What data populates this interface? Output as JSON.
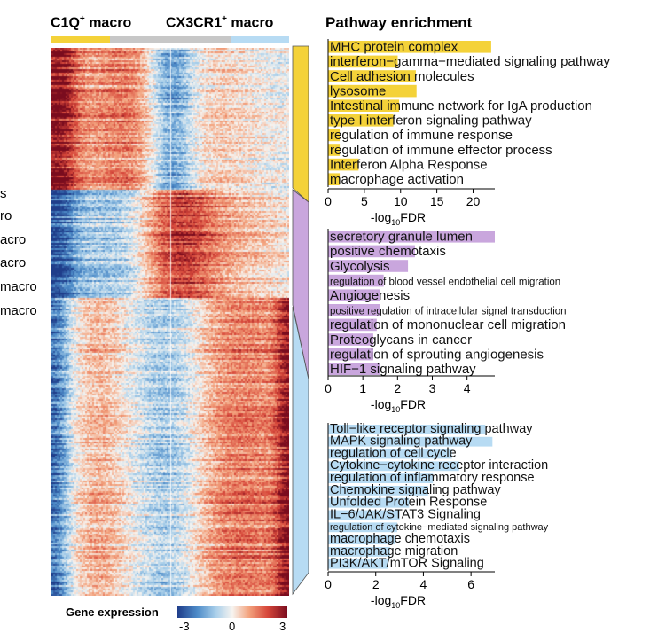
{
  "headers": {
    "c1q_prefix": "C1Q",
    "c1q_suffix": " macro",
    "cx3_prefix": "CX3CR1",
    "cx3_suffix": " macro",
    "sup": "+",
    "pathway": "Pathway enrichment"
  },
  "left_labels": [
    "s",
    "ro",
    "acro",
    "acro",
    "macro",
    "macro"
  ],
  "legend": {
    "title": "Gene expression",
    "ticks": [
      "-3",
      "0",
      "3"
    ]
  },
  "colors": {
    "yellow": "#f4d239",
    "purple": "#c9a6dd",
    "blue": "#b7dbf3",
    "gray": "#c7c7c7",
    "heat_low": "#2b5d9e",
    "heat_mid": "#f7f4f0",
    "heat_high": "#8b0f22"
  },
  "chart_data": [
    {
      "type": "bar",
      "orientation": "horizontal",
      "cluster": "yellow",
      "xlabel": "-log10FDR",
      "xlim": [
        0,
        23
      ],
      "xticks": [
        0,
        5,
        10,
        15,
        20
      ],
      "categories": [
        "MHC protein complex",
        "interferon−gamma−mediated signaling pathway",
        "Cell adhesion molecules",
        "lysosome",
        "Intestinal immune network for IgA production",
        "type I interferon signaling pathway",
        "regulation of immune response",
        "regulation of immune effector process",
        "Interferon Alpha Response",
        "macrophage activation"
      ],
      "values": [
        22.5,
        9.6,
        12.1,
        12.2,
        9.8,
        9.0,
        1.6,
        1.6,
        4.2,
        1.6
      ]
    },
    {
      "type": "bar",
      "orientation": "horizontal",
      "cluster": "purple",
      "xlabel": "-log10FDR",
      "xlim": [
        0,
        4.8
      ],
      "xticks": [
        0,
        1,
        2,
        3,
        4
      ],
      "categories": [
        "secretory granule lumen",
        "positive chemotaxis",
        "Glycolysis",
        "regulation of blood vessel endothelial cell migration",
        "Angiogenesis",
        "positive regulation of intracellular signal transduction",
        "regulation of mononuclear cell migration",
        "Proteoglycans in cancer",
        "regulation of sprouting angiogenesis",
        "HIF−1 signaling pathway"
      ],
      "values": [
        4.8,
        2.5,
        2.3,
        1.6,
        1.5,
        1.5,
        1.4,
        1.3,
        1.3,
        1.5
      ]
    },
    {
      "type": "bar",
      "orientation": "horizontal",
      "cluster": "blue",
      "xlabel": "-log10FDR",
      "xlim": [
        0,
        7
      ],
      "xticks": [
        0,
        2,
        4,
        6
      ],
      "categories": [
        "Toll−like receptor signaling pathway",
        "MAPK signaling pathway",
        "regulation of cell cycle",
        "Cytokine−cytokine receptor interaction",
        "regulation of inflammatory response",
        "Chemokine signaling pathway",
        "Unfolded Protein Response",
        "IL−6/JAK/STAT3 Signaling",
        "regulation of cytokine−mediated signaling pathway",
        "macrophage chemotaxis",
        "macrophage migration",
        "PI3K/AKT/mTOR  Signaling"
      ],
      "values": [
        6.6,
        6.9,
        5.2,
        5.5,
        4.4,
        4.2,
        3.4,
        3.0,
        2.9,
        2.8,
        2.6,
        2.5
      ]
    }
  ]
}
